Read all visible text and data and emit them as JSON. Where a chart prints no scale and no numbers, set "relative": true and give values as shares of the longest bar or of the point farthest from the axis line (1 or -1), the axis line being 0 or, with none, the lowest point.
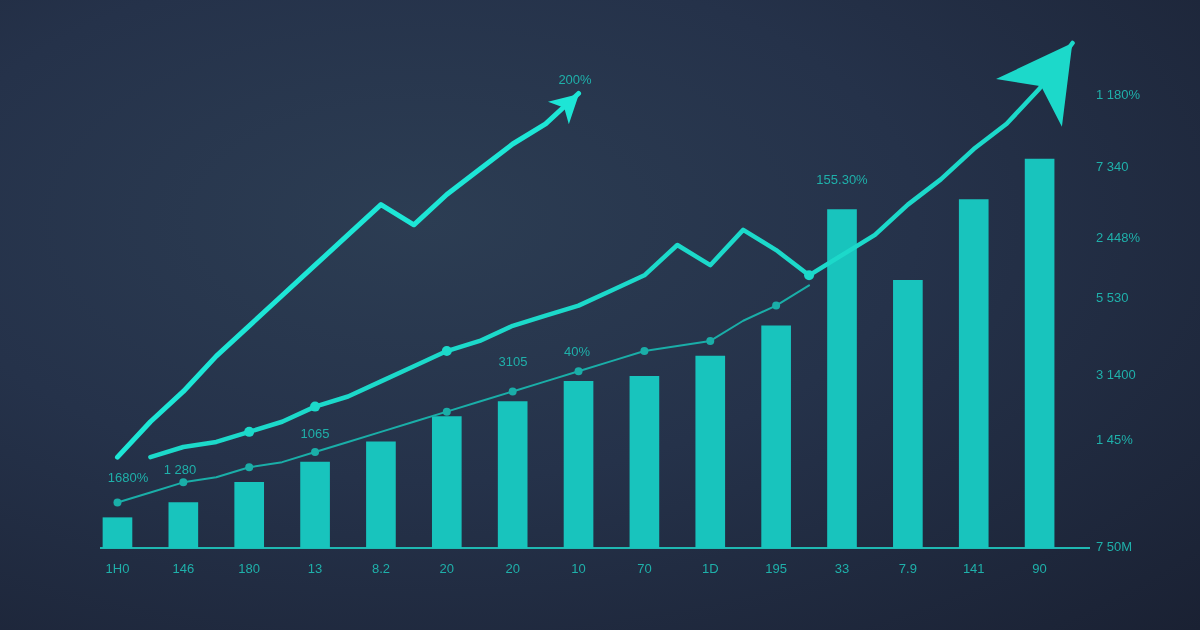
{
  "chart_data": {
    "type": "bar",
    "relative": true,
    "categories": [
      "1H0",
      null,
      "146",
      null,
      "180",
      null,
      "13",
      null,
      "8.2",
      null,
      "20",
      null,
      "20",
      null,
      "10",
      null,
      "70",
      null,
      "1D",
      null,
      "195",
      null,
      "33",
      null,
      "7.9",
      null,
      "141",
      null,
      "90",
      null
    ],
    "series": [
      {
        "color": "#18c4bd",
        "values": [
          0.06,
          null,
          0.09,
          null,
          0.13,
          null,
          0.17,
          null,
          0.21,
          null,
          0.26,
          null,
          0.29,
          null,
          0.33,
          null,
          0.34,
          null,
          0.38,
          null,
          0.44,
          null,
          0.67,
          null,
          0.53,
          null,
          0.69,
          null,
          0.77,
          null
        ]
      },
      {
        "type": "line",
        "color": "#1de6d6",
        "values": [
          0.18,
          0.25,
          0.31,
          0.38,
          0.44,
          0.5,
          0.56,
          0.62,
          0.68,
          0.64,
          0.7,
          0.75,
          0.8,
          0.84,
          0.9,
          null,
          null,
          null,
          null,
          null,
          null,
          null,
          null,
          null,
          null,
          null,
          null,
          null,
          null,
          null
        ]
      },
      {
        "type": "line",
        "color": "#1cd9ca",
        "values": [
          null,
          0.18,
          0.2,
          0.21,
          0.23,
          0.25,
          0.28,
          0.3,
          0.33,
          0.36,
          0.39,
          0.41,
          0.44,
          0.46,
          0.48,
          0.51,
          0.54,
          0.6,
          0.56,
          0.63,
          0.59,
          0.54,
          0.58,
          0.62,
          0.68,
          0.73,
          0.79,
          0.84,
          0.91,
          1
        ]
      },
      {
        "type": "line",
        "color": "#1aaea8",
        "values": [
          0.09,
          0.11,
          0.13,
          0.14,
          0.16,
          0.17,
          0.19,
          0.21,
          0.23,
          0.25,
          0.27,
          0.29,
          0.31,
          0.33,
          0.35,
          0.37,
          0.39,
          0.4,
          0.41,
          0.45,
          0.48,
          0.52,
          null,
          null,
          null,
          null,
          null,
          null,
          null,
          null
        ]
      },
      {
        "type": "scatter",
        "color": "#1cd9ca",
        "marker": "circle",
        "values": [
          null,
          null,
          null,
          null,
          0.23,
          null,
          0.28,
          null,
          null,
          null,
          0.39,
          null,
          null,
          null,
          null,
          null,
          null,
          null,
          null,
          null,
          null,
          0.54,
          null,
          null,
          null,
          null,
          null,
          null,
          null,
          null
        ]
      },
      {
        "type": "scatter",
        "color": "#1aaea8",
        "marker": "circle",
        "values": [
          0.09,
          null,
          0.13,
          null,
          0.16,
          null,
          0.19,
          null,
          null,
          null,
          0.27,
          null,
          0.31,
          null,
          0.35,
          null,
          0.39,
          null,
          0.41,
          null,
          0.48,
          null,
          null,
          null,
          null,
          null,
          null,
          null,
          null,
          null
        ]
      }
    ],
    "annotations": [
      "200%",
      "155.30%",
      "3105",
      "40%",
      "1065",
      "1 280",
      "1680%",
      "1 180%",
      "7 340",
      "2 448%",
      "5 530",
      "3 1400",
      "1 45%",
      "7 50M"
    ]
  }
}
